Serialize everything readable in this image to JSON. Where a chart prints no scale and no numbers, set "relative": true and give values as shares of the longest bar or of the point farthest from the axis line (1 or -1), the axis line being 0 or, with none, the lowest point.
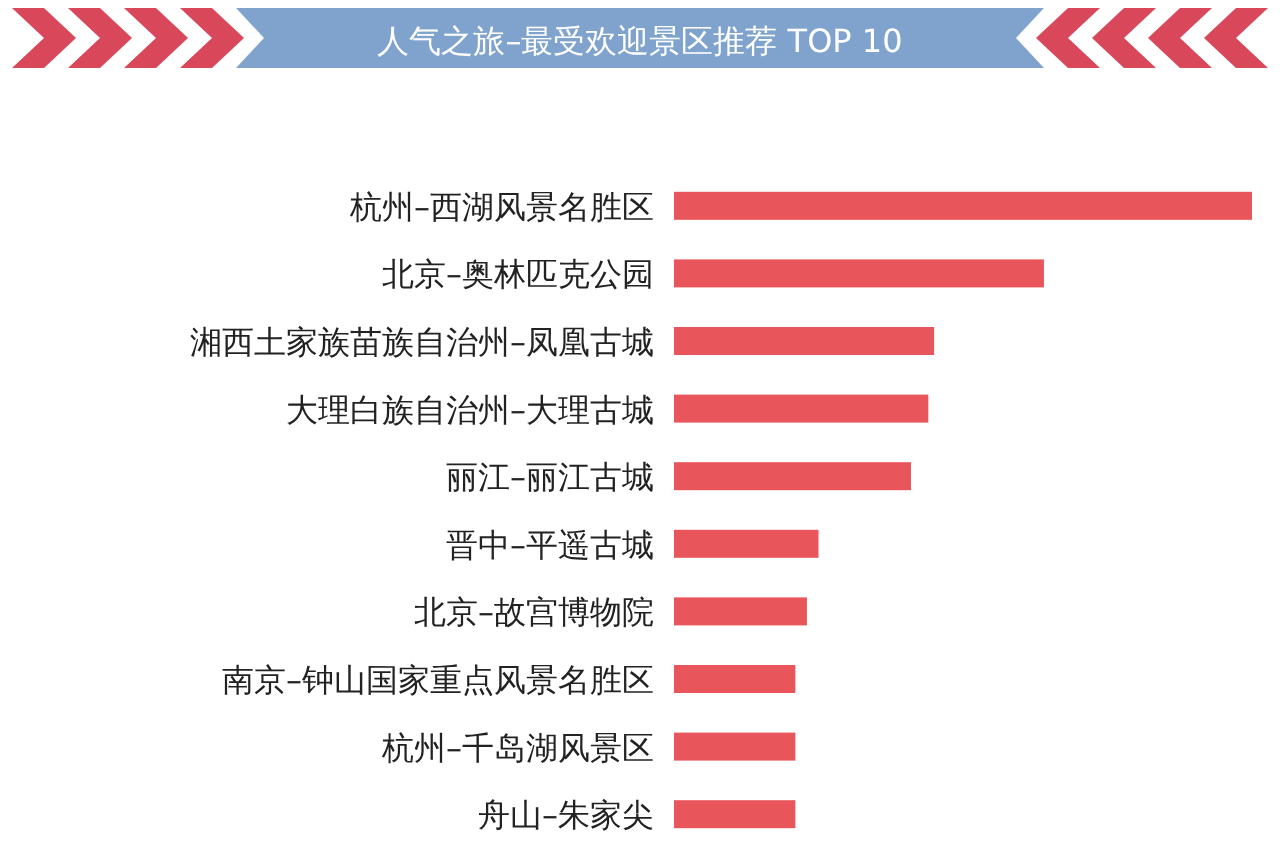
{
  "chart_data": {
    "type": "bar",
    "orientation": "horizontal",
    "relative": true,
    "title": "人气之旅–最受欢迎景区推荐 TOP 10",
    "categories": [
      "杭州–西湖风景名胜区",
      "北京–奥林匹克公园",
      "湘西土家族苗族自治州–凤凰古城",
      "大理白族自治州–大理古城",
      "丽江–丽江古城",
      "晋中–平遥古城",
      "北京–故宫博物院",
      "南京–钟山国家重点风景名胜区",
      "杭州–千岛湖风景区",
      "舟山–朱家尖"
    ],
    "values": [
      1,
      0.64,
      0.45,
      0.44,
      0.41,
      0.25,
      0.23,
      0.21,
      0.21,
      0.21
    ],
    "color": "#e8555a"
  }
}
